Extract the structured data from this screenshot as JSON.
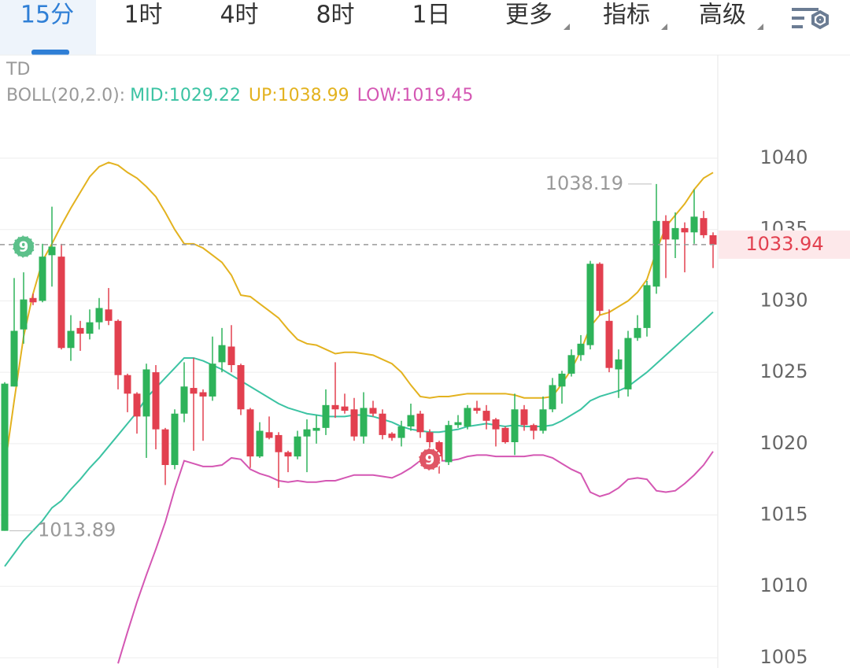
{
  "tabs": [
    "15分",
    "1时",
    "4时",
    "8时",
    "1日",
    "更多",
    "指标",
    "高级"
  ],
  "chart_data": {
    "type": "candlestick",
    "indicator": "TD",
    "boll_label": "BOLL(20,2.0):",
    "ylim": [
      1004.28,
      1047.22
    ],
    "yticks": [
      1005,
      1010,
      1015,
      1020,
      1025,
      1030,
      1035,
      1040
    ],
    "grid": true,
    "up_color": "#2eb35a",
    "down_color": "#e2404f",
    "open": [
      1013.89,
      1024.0,
      1028.0,
      1030.2,
      1030.0,
      1033.2,
      1033.1,
      1026.7,
      1028.1,
      1027.7,
      1028.5,
      1029.4,
      1028.6,
      1024.8,
      1023.5,
      1021.9,
      1025.0,
      1021.0,
      1018.5,
      1022.1,
      1023.9,
      1023.6,
      1023.3,
      1025.7,
      1026.8,
      1025.5,
      1022.4,
      1019.1,
      1020.8,
      1020.6,
      1019.4,
      1019.1,
      1020.5,
      1020.9,
      1021.1,
      1022.7,
      1022.6,
      1022.4,
      1020.5,
      1022.5,
      1022.1,
      1020.7,
      1020.4,
      1021.2,
      1022.1,
      1020.8,
      1020.1,
      1018.7,
      1021.3,
      1021.2,
      1022.5,
      1022.3,
      1021.7,
      1021.1,
      1020.1,
      1022.4,
      1021.3,
      1020.9,
      1022.4,
      1024.0,
      1024.9,
      1026.2,
      1026.9,
      1032.6,
      1028.6,
      1025.2,
      1023.8,
      1027.4,
      1028.1,
      1031.0,
      1035.6,
      1034.3,
      1035.1,
      1034.8,
      1035.8,
      1034.6
    ],
    "high": [
      1024.3,
      1031.6,
      1032.0,
      1030.5,
      1034.0,
      1036.6,
      1034.0,
      1029.0,
      1028.6,
      1029.4,
      1030.2,
      1030.9,
      1028.7,
      1024.9,
      1023.6,
      1025.6,
      1025.5,
      1021.1,
      1022.4,
      1025.7,
      1026.0,
      1023.8,
      1027.5,
      1028.1,
      1028.3,
      1025.6,
      1022.5,
      1021.5,
      1021.9,
      1020.8,
      1019.5,
      1020.9,
      1021.7,
      1022.0,
      1023.8,
      1025.7,
      1023.5,
      1023.2,
      1023.6,
      1023.0,
      1022.4,
      1020.8,
      1021.6,
      1022.8,
      1022.3,
      1021.0,
      1020.2,
      1021.6,
      1022.0,
      1022.7,
      1023.0,
      1022.7,
      1021.8,
      1021.2,
      1023.5,
      1022.7,
      1021.4,
      1023.3,
      1024.6,
      1025.1,
      1026.6,
      1027.6,
      1032.8,
      1032.7,
      1029.4,
      1026.6,
      1027.9,
      1029.0,
      1031.4,
      1038.19,
      1036.0,
      1036.2,
      1035.5,
      1037.8,
      1036.3,
      1034.8
    ],
    "low": [
      1013.89,
      1024.0,
      1027.0,
      1029.7,
      1029.9,
      1031.0,
      1026.6,
      1025.8,
      1026.5,
      1027.3,
      1028.0,
      1028.3,
      1023.8,
      1022.2,
      1020.7,
      1019.0,
      1019.6,
      1017.1,
      1018.2,
      1021.5,
      1019.5,
      1020.2,
      1023.0,
      1025.0,
      1025.0,
      1022.0,
      1018.3,
      1019.0,
      1020.3,
      1016.9,
      1018.0,
      1018.9,
      1018.0,
      1020.0,
      1020.6,
      1021.8,
      1022.1,
      1020.2,
      1020.0,
      1021.9,
      1020.3,
      1020.2,
      1019.8,
      1020.9,
      1020.4,
      1019.7,
      1017.9,
      1018.5,
      1021.1,
      1021.0,
      1022.1,
      1021.0,
      1019.8,
      1020.0,
      1019.2,
      1020.9,
      1020.3,
      1020.7,
      1022.2,
      1022.8,
      1024.7,
      1025.8,
      1026.6,
      1029.0,
      1025.0,
      1023.2,
      1023.3,
      1027.2,
      1027.5,
      1030.5,
      1031.6,
      1033.0,
      1032.0,
      1034.0,
      1034.4,
      1032.3
    ],
    "close": [
      1024.2,
      1027.9,
      1030.1,
      1029.9,
      1033.1,
      1033.8,
      1026.7,
      1027.9,
      1027.7,
      1028.5,
      1029.5,
      1028.6,
      1024.8,
      1023.5,
      1021.9,
      1025.2,
      1021.0,
      1018.5,
      1022.1,
      1024.0,
      1023.5,
      1023.3,
      1025.6,
      1026.9,
      1025.5,
      1022.4,
      1019.1,
      1020.9,
      1020.4,
      1019.4,
      1019.1,
      1020.5,
      1021.0,
      1021.1,
      1022.7,
      1022.4,
      1022.3,
      1020.5,
      1022.5,
      1022.1,
      1020.6,
      1020.4,
      1021.2,
      1022.0,
      1020.8,
      1020.1,
      1018.8,
      1021.3,
      1021.5,
      1022.5,
      1022.3,
      1021.6,
      1021.0,
      1020.1,
      1022.4,
      1021.3,
      1020.9,
      1022.4,
      1024.1,
      1024.9,
      1026.2,
      1027.0,
      1032.6,
      1029.3,
      1025.3,
      1025.9,
      1027.4,
      1028.1,
      1031.1,
      1035.6,
      1034.3,
      1035.1,
      1034.8,
      1035.9,
      1034.6,
      1033.94
    ],
    "series": [
      {
        "name": "MID:1029.22",
        "color": "#3cc3a3",
        "values": [
          1011.4,
          1012.3,
          1013.2,
          1013.9,
          1014.6,
          1015.5,
          1016,
          1016.8,
          1017.5,
          1018.3,
          1019,
          1019.8,
          1020.6,
          1021.4,
          1022.2,
          1023.2,
          1023.9,
          1024.6,
          1025.3,
          1026,
          1026,
          1025.8,
          1025.5,
          1025.2,
          1024.8,
          1024.4,
          1024,
          1023.6,
          1023.2,
          1022.8,
          1022.5,
          1022.3,
          1022.1,
          1022,
          1021.9,
          1021.9,
          1021.9,
          1022,
          1022,
          1021.9,
          1021.7,
          1021.5,
          1021.2,
          1021,
          1020.9,
          1020.8,
          1020.8,
          1020.9,
          1021,
          1021.2,
          1021.3,
          1021.4,
          1021.3,
          1021.2,
          1021.3,
          1021.2,
          1021.2,
          1021.2,
          1021.3,
          1021.6,
          1022,
          1022.4,
          1023,
          1023.3,
          1023.5,
          1023.7,
          1024,
          1024.5,
          1025,
          1025.6,
          1026.2,
          1026.8,
          1027.4,
          1028,
          1028.6,
          1029.22
        ]
      },
      {
        "name": "UP:1038.99",
        "color": "#e3b21f",
        "values": [
          1018.3,
          1023,
          1027.5,
          1030.5,
          1032.8,
          1034,
          1035.3,
          1036.5,
          1037.6,
          1038.7,
          1039.4,
          1039.7,
          1039.5,
          1039,
          1038.6,
          1038,
          1037.3,
          1036.2,
          1035,
          1034,
          1034,
          1033.7,
          1033.2,
          1032.7,
          1031.8,
          1030.4,
          1030.3,
          1029.8,
          1029.3,
          1028.8,
          1028,
          1027.3,
          1027,
          1026.9,
          1026.6,
          1026.3,
          1026.4,
          1026.4,
          1026.3,
          1026.2,
          1025.9,
          1025.6,
          1025,
          1024.1,
          1023.3,
          1023.2,
          1023.3,
          1023.3,
          1023.4,
          1023.5,
          1023.5,
          1023.5,
          1023.5,
          1023.5,
          1023.4,
          1023.2,
          1023.2,
          1023.2,
          1023.3,
          1024.2,
          1025.2,
          1026.5,
          1028.2,
          1029,
          1029.2,
          1029.6,
          1030,
          1030.6,
          1031.5,
          1033.5,
          1035.2,
          1036,
          1036.8,
          1037.8,
          1038.6,
          1038.99
        ]
      },
      {
        "name": "LOW:1019.45",
        "color": "#d457b3",
        "values": [
          null,
          null,
          null,
          null,
          null,
          null,
          null,
          null,
          null,
          null,
          null,
          null,
          1004.6,
          1006.8,
          1008.9,
          1010.8,
          1012.6,
          1014.5,
          1016.8,
          1018.8,
          1018.6,
          1018.4,
          1018.4,
          1018.5,
          1019,
          1018.9,
          1018.2,
          1017.9,
          1017.7,
          1017.4,
          1017.3,
          1017.4,
          1017.3,
          1017.3,
          1017.4,
          1017.4,
          1017.6,
          1017.8,
          1017.8,
          1017.8,
          1017.7,
          1017.6,
          1017.9,
          1018.3,
          1018.8,
          1018.9,
          1018.8,
          1018.8,
          1018.9,
          1019.1,
          1019.2,
          1019.2,
          1019.1,
          1019.1,
          1019.1,
          1019.1,
          1019.2,
          1019.2,
          1019,
          1018.6,
          1018.2,
          1017.9,
          1016.6,
          1016.3,
          1016.5,
          1016.9,
          1017.5,
          1017.6,
          1017.5,
          1016.7,
          1016.6,
          1016.7,
          1017.2,
          1017.8,
          1018.5,
          1019.45
        ]
      }
    ],
    "max_label": 1038.19,
    "min_label": 1013.89,
    "last_price": 1033.94,
    "signals": [
      {
        "index": 2,
        "value": 1033.8,
        "label": "9",
        "color": "#5cc08a"
      },
      {
        "index": 45,
        "value": 1018.9,
        "label": "9",
        "color": "#e05565"
      }
    ]
  }
}
